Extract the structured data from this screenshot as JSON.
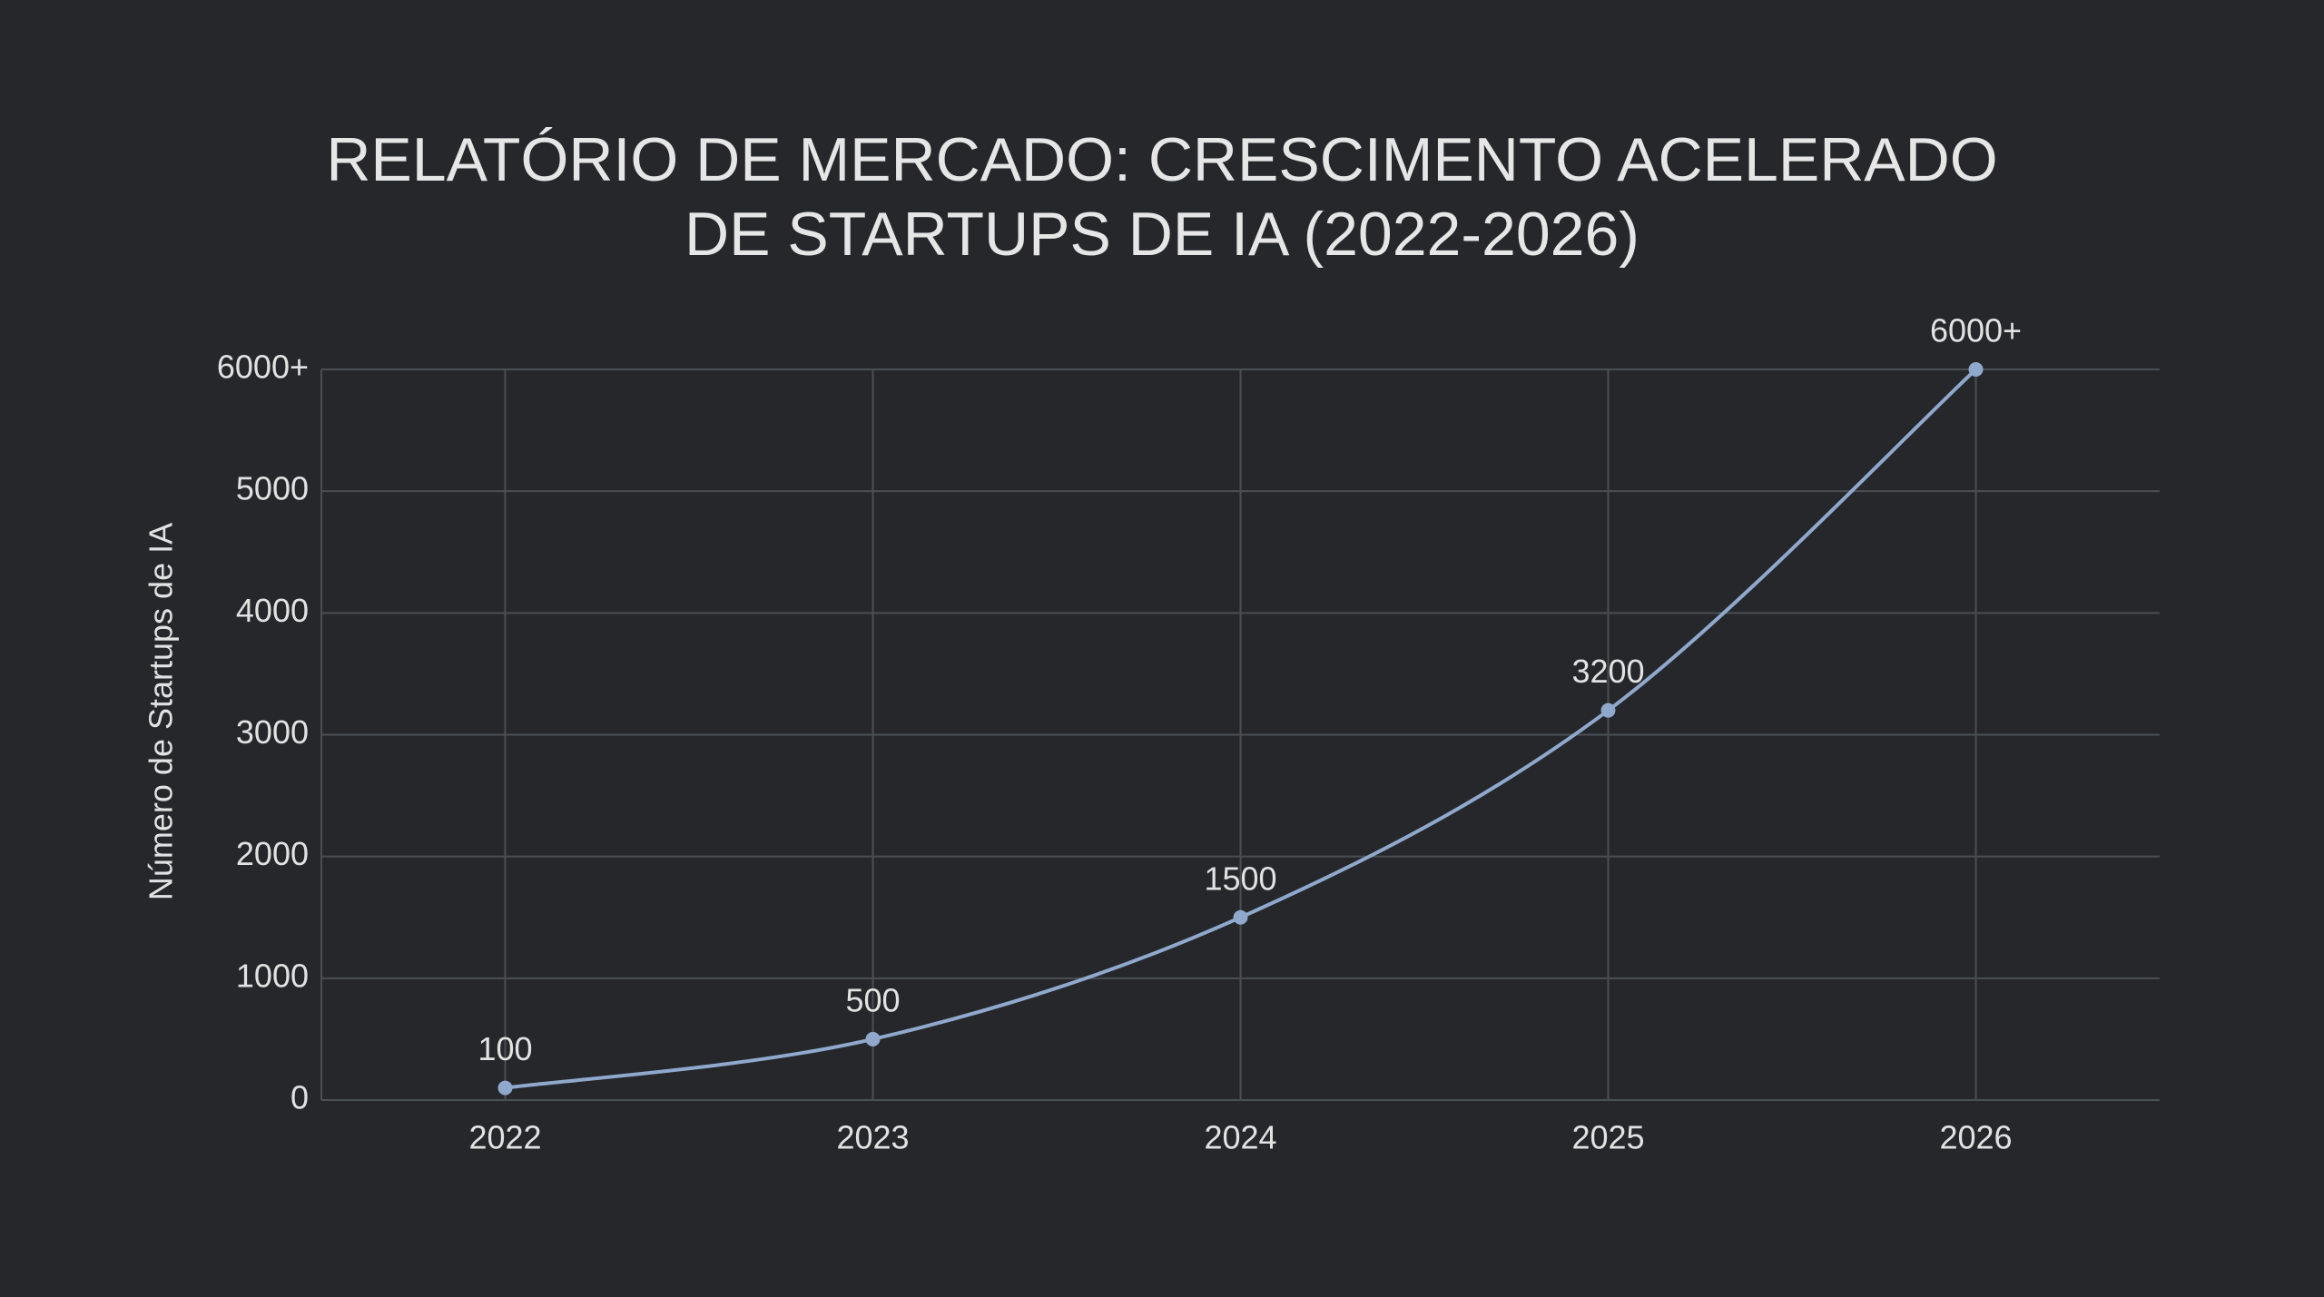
{
  "chart_data": {
    "type": "line",
    "title": "RELATÓRIO DE MERCADO: CRESCIMENTO ACELERADO DE STARTUPS DE IA (2022-2026)",
    "y_label": "Número de Startups de IA",
    "categories": [
      "2022",
      "2023",
      "2024",
      "2025",
      "2026"
    ],
    "values": [
      100,
      500,
      1500,
      3200,
      6000
    ],
    "value_labels": [
      "100",
      "500",
      "1500",
      "3200",
      "6000+"
    ],
    "color": "#8fa8cc",
    "ylim": [
      0,
      6000
    ],
    "yticks": [
      0,
      1000,
      2000,
      3000,
      4000,
      5000,
      {
        "value": 6000,
        "label": "6000+"
      }
    ],
    "grid": true
  }
}
